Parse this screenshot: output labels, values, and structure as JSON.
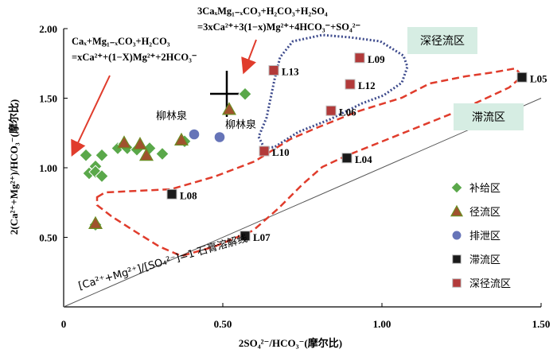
{
  "chart_data": {
    "type": "scatter",
    "xlabel": "2SO₄²⁻/HCO₃⁻(摩尔比)",
    "ylabel": "2(Ca²⁺+Mg²⁺)/HCO₃⁻(摩尔比)",
    "xlim": [
      0,
      1.5
    ],
    "ylim": [
      0,
      2.0
    ],
    "x_ticks": [
      "0",
      "0.50",
      "1.00",
      "1.50"
    ],
    "y_ticks": [
      "0.50",
      "1.00",
      "1.50",
      "2.00"
    ],
    "legend": [
      "补给区",
      "径流区",
      "排泄区",
      "滞流区",
      "深径流区"
    ],
    "legend_position": "right",
    "series": [
      {
        "name": "补给区",
        "marker": "diamond",
        "color": "#5aa84a",
        "points": [
          [
            0.07,
            1.09
          ],
          [
            0.08,
            0.96
          ],
          [
            0.1,
            1.01
          ],
          [
            0.1,
            0.97
          ],
          [
            0.12,
            1.09
          ],
          [
            0.12,
            0.94
          ],
          [
            0.17,
            1.14
          ],
          [
            0.19,
            1.17
          ],
          [
            0.2,
            1.14
          ],
          [
            0.23,
            1.13
          ],
          [
            0.27,
            1.14
          ],
          [
            0.31,
            1.1
          ],
          [
            0.38,
            1.19
          ],
          [
            0.57,
            1.53
          ],
          [
            0.1,
            0.59
          ]
        ]
      },
      {
        "name": "径流区",
        "marker": "triangle",
        "color": "#a0522d",
        "points": [
          [
            0.1,
            0.6
          ],
          [
            0.19,
            1.18
          ],
          [
            0.24,
            1.17
          ],
          [
            0.26,
            1.09
          ],
          [
            0.37,
            1.2
          ],
          [
            0.52,
            1.42
          ]
        ]
      },
      {
        "name": "排泄区",
        "marker": "circle",
        "color": "#6674b8",
        "points": [
          [
            0.41,
            1.24
          ],
          [
            0.49,
            1.22
          ]
        ]
      },
      {
        "name": "滞流区",
        "marker": "square",
        "color": "#1a1a1a",
        "points": [
          [
            0.34,
            0.81
          ],
          [
            0.57,
            0.51
          ],
          [
            0.89,
            1.07
          ],
          [
            1.44,
            1.65
          ]
        ]
      },
      {
        "name": "深径流区",
        "marker": "square",
        "color": "#b23a3a",
        "points": [
          [
            0.63,
            1.12
          ],
          [
            0.66,
            1.7
          ],
          [
            0.84,
            1.41
          ],
          [
            0.9,
            1.6
          ],
          [
            0.93,
            1.79
          ]
        ]
      }
    ],
    "point_labels": [
      {
        "text": "L13",
        "x": 0.66,
        "y": 1.7
      },
      {
        "text": "L09",
        "x": 0.93,
        "y": 1.79
      },
      {
        "text": "L12",
        "x": 0.9,
        "y": 1.6
      },
      {
        "text": "L06",
        "x": 0.84,
        "y": 1.41
      },
      {
        "text": "L10",
        "x": 0.63,
        "y": 1.12
      },
      {
        "text": "L04",
        "x": 0.89,
        "y": 1.07
      },
      {
        "text": "L05",
        "x": 1.44,
        "y": 1.65
      },
      {
        "text": "L08",
        "x": 0.34,
        "y": 0.81
      },
      {
        "text": "L07",
        "x": 0.57,
        "y": 0.51
      }
    ],
    "annotations": {
      "liulinquan_1": "柳林泉",
      "liulinquan_2": "柳林泉",
      "deep_zone": "深径流区",
      "stagnant_zone": "滞流区",
      "line_label": "[Ca²⁺+Mg²⁺]/[SO₄²⁻]=1 石膏溶解线"
    },
    "equations": {
      "left_line1": "Caₓ+Mg₁₋ₓCO₃+H₂CO₃",
      "left_line2": "=xCa²⁺+(1−X)Mg²⁺+2HCO₃⁻",
      "top_line1": "3CaₓMg₁₋ₓCO₃+H₂CO₃+H₂SO₄",
      "top_line2": "=3xCa²⁺+3(1−x)Mg²⁺+4HCO₃⁻+SO₄²⁻"
    },
    "gypsum_line": [
      [
        0,
        0
      ],
      [
        1.5,
        1.5
      ]
    ],
    "grid": false
  }
}
